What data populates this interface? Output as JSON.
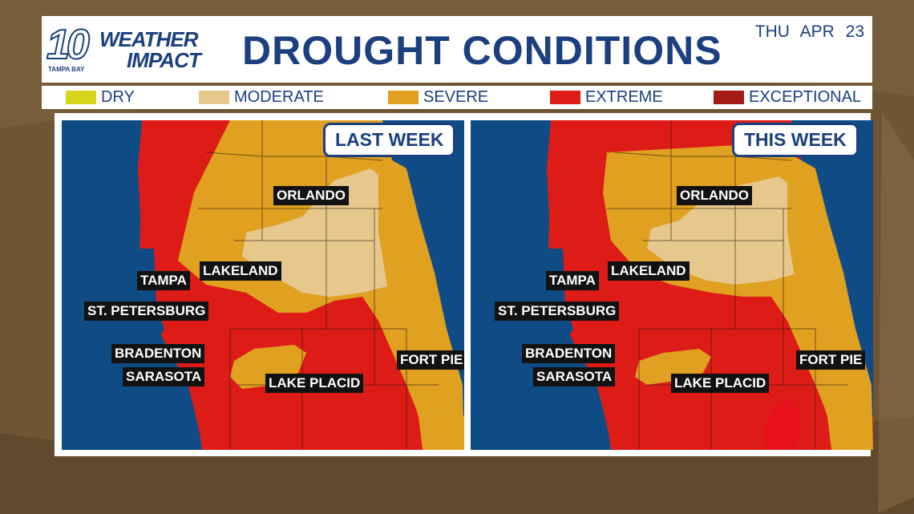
{
  "header": {
    "logo_number": "10",
    "logo_word1": "WEATHER",
    "logo_word2": "IMPACT",
    "logo_station": "TAMPA BAY",
    "title": "DROUGHT CONDITIONS",
    "day": "THU",
    "date": "APR 23"
  },
  "legend": [
    {
      "label": "DRY",
      "color": "#d7d61c"
    },
    {
      "label": "MODERATE",
      "color": "#e6c78c"
    },
    {
      "label": "SEVERE",
      "color": "#e0a020"
    },
    {
      "label": "EXTREME",
      "color": "#dd1c17"
    },
    {
      "label": "EXCEPTIONAL",
      "color": "#a51b16"
    }
  ],
  "colors": {
    "water": "#0f4c86",
    "title_blue": "#1b3f7f",
    "moderate": "#e6c78c",
    "severe": "#e0a020",
    "extreme": "#dd1c17",
    "exceptional": "#a51b16"
  },
  "maps": {
    "last_week": {
      "badge": "LAST WEEK",
      "cities": {
        "orlando": "ORLANDO",
        "lakeland": "LAKELAND",
        "tampa": "TAMPA",
        "st_petersburg": "ST. PETERSBURG",
        "bradenton": "BRADENTON",
        "sarasota": "SARASOTA",
        "lake_placid": "LAKE PLACID",
        "fort_pierce": "FORT PIE"
      }
    },
    "this_week": {
      "badge": "THIS WEEK",
      "cities": {
        "orlando": "ORLANDO",
        "lakeland": "LAKELAND",
        "tampa": "TAMPA",
        "st_petersburg": "ST. PETERSBURG",
        "bradenton": "BRADENTON",
        "sarasota": "SARASOTA",
        "lake_placid": "LAKE PLACID",
        "fort_pierce": "FORT PIE"
      }
    }
  }
}
